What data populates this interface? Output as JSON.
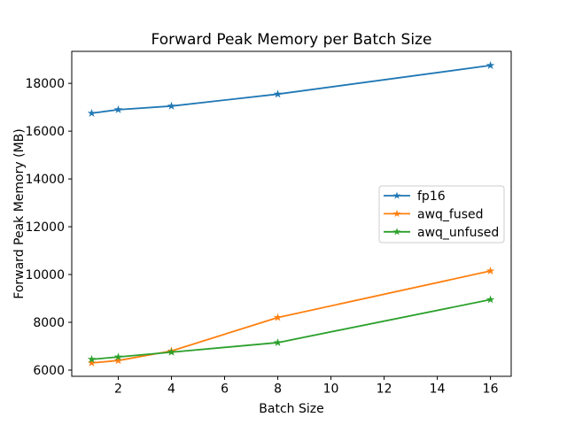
{
  "figure": {
    "background": "#ffffff",
    "text_color": "#000000",
    "spine_color": "#000000",
    "legend_frame_color": "#cccccc"
  },
  "chart_data": {
    "type": "line",
    "title": "Forward Peak Memory per Batch Size",
    "xlabel": "Batch Size",
    "ylabel": "Forward Peak Memory (MB)",
    "x": [
      1,
      2,
      4,
      8,
      16
    ],
    "series": [
      {
        "name": "fp16",
        "color": "#1f77b4",
        "marker": "star",
        "values": [
          16750,
          16900,
          17050,
          17550,
          18750
        ]
      },
      {
        "name": "awq_fused",
        "color": "#ff7f0e",
        "marker": "star",
        "values": [
          6300,
          6400,
          6800,
          8200,
          10150
        ]
      },
      {
        "name": "awq_unfused",
        "color": "#2ca02c",
        "marker": "star",
        "values": [
          6450,
          6550,
          6750,
          7150,
          8950
        ]
      }
    ],
    "xticks": [
      2,
      4,
      6,
      8,
      10,
      12,
      14,
      16
    ],
    "yticks": [
      6000,
      8000,
      10000,
      12000,
      14000,
      16000,
      18000
    ],
    "xlim": [
      0.25,
      16.78
    ],
    "ylim": [
      5740,
      19340
    ],
    "grid": false,
    "legend": {
      "position": "center-right",
      "entries": [
        "fp16",
        "awq_fused",
        "awq_unfused"
      ]
    }
  }
}
